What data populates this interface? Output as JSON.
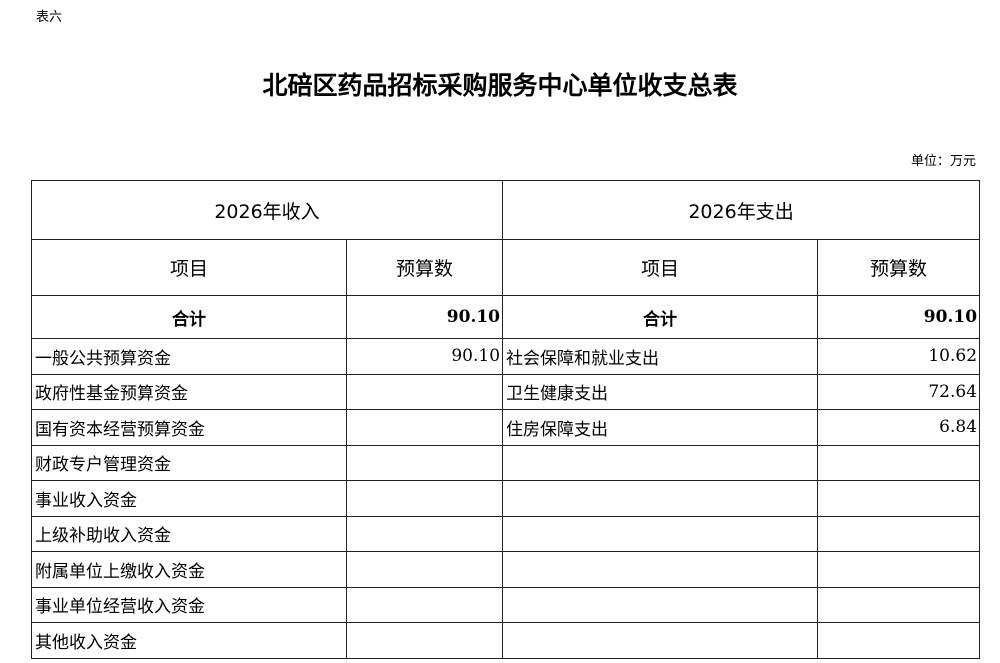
{
  "label": "表六",
  "title": "北碚区药品招标采购服务中心单位收支总表",
  "unit": "单位：万元",
  "income_header": "2026年收入",
  "expense_header": "2026年支出",
  "col_item": "项目",
  "col_budget": "预算数",
  "total_label": "合计",
  "income_total": "90.10",
  "expense_total": "90.10",
  "rows": [
    {
      "income_item": "一般公共预算资金",
      "income_value": "90.10",
      "expense_item": "社会保障和就业支出",
      "expense_value": "10.62"
    },
    {
      "income_item": "政府性基金预算资金",
      "income_value": "",
      "expense_item": "卫生健康支出",
      "expense_value": "72.64"
    },
    {
      "income_item": "国有资本经营预算资金",
      "income_value": "",
      "expense_item": "住房保障支出",
      "expense_value": "6.84"
    },
    {
      "income_item": "财政专户管理资金",
      "income_value": "",
      "expense_item": "",
      "expense_value": ""
    },
    {
      "income_item": "事业收入资金",
      "income_value": "",
      "expense_item": "",
      "expense_value": ""
    },
    {
      "income_item": "上级补助收入资金",
      "income_value": "",
      "expense_item": "",
      "expense_value": ""
    },
    {
      "income_item": "附属单位上缴收入资金",
      "income_value": "",
      "expense_item": "",
      "expense_value": ""
    },
    {
      "income_item": "事业单位经营收入资金",
      "income_value": "",
      "expense_item": "",
      "expense_value": ""
    },
    {
      "income_item": "其他收入资金",
      "income_value": "",
      "expense_item": "",
      "expense_value": ""
    }
  ]
}
